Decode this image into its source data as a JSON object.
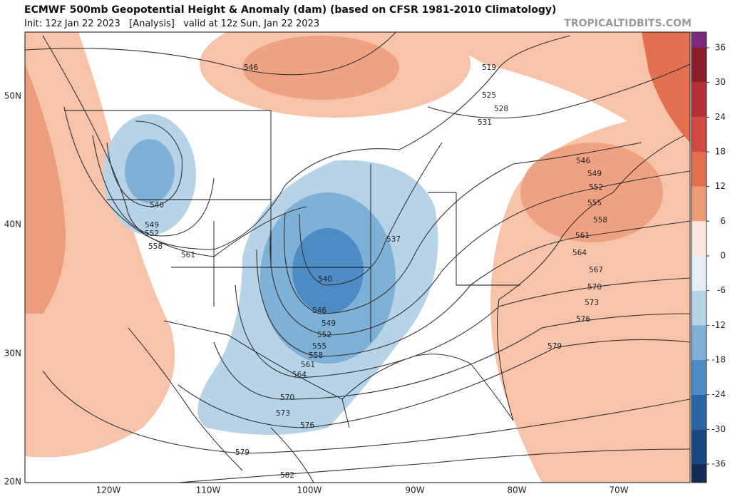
{
  "header": {
    "title": "ECMWF 500mb Geopotential Height & Anomaly (dam) (based on CFSR 1981-2010 Climatology)",
    "subtitle": "Init: 12z Jan 22 2023   [Analysis]   valid at 12z Sun, Jan 22 2023",
    "watermark": "TROPICALTIDBITS.COM"
  },
  "map": {
    "lat_labels": [
      "50N",
      "40N",
      "30N",
      "20N"
    ],
    "lon_labels": [
      "120W",
      "110W",
      "100W",
      "90W",
      "80W",
      "70W"
    ],
    "contour_labels": [
      546,
      519,
      525,
      528,
      531,
      546,
      549,
      552,
      558,
      561,
      537,
      540,
      546,
      549,
      552,
      555,
      558,
      561,
      564,
      570,
      573,
      576,
      579,
      582,
      546,
      549,
      552,
      555,
      558,
      561,
      564,
      567,
      570,
      573,
      576,
      579
    ]
  },
  "colorbar": {
    "ticks": [
      36,
      30,
      24,
      18,
      12,
      6,
      0,
      -6,
      -12,
      -18,
      -24,
      -30,
      -36
    ],
    "colors": [
      "#7b2b7d",
      "#8c1d2c",
      "#b42f36",
      "#d04a40",
      "#e2704f",
      "#ef9a76",
      "#fde6dc",
      "#e4eef7",
      "#b7d3e8",
      "#7fb0d6",
      "#4b8cc4",
      "#2a66a6",
      "#1b4780",
      "#142c55"
    ]
  }
}
